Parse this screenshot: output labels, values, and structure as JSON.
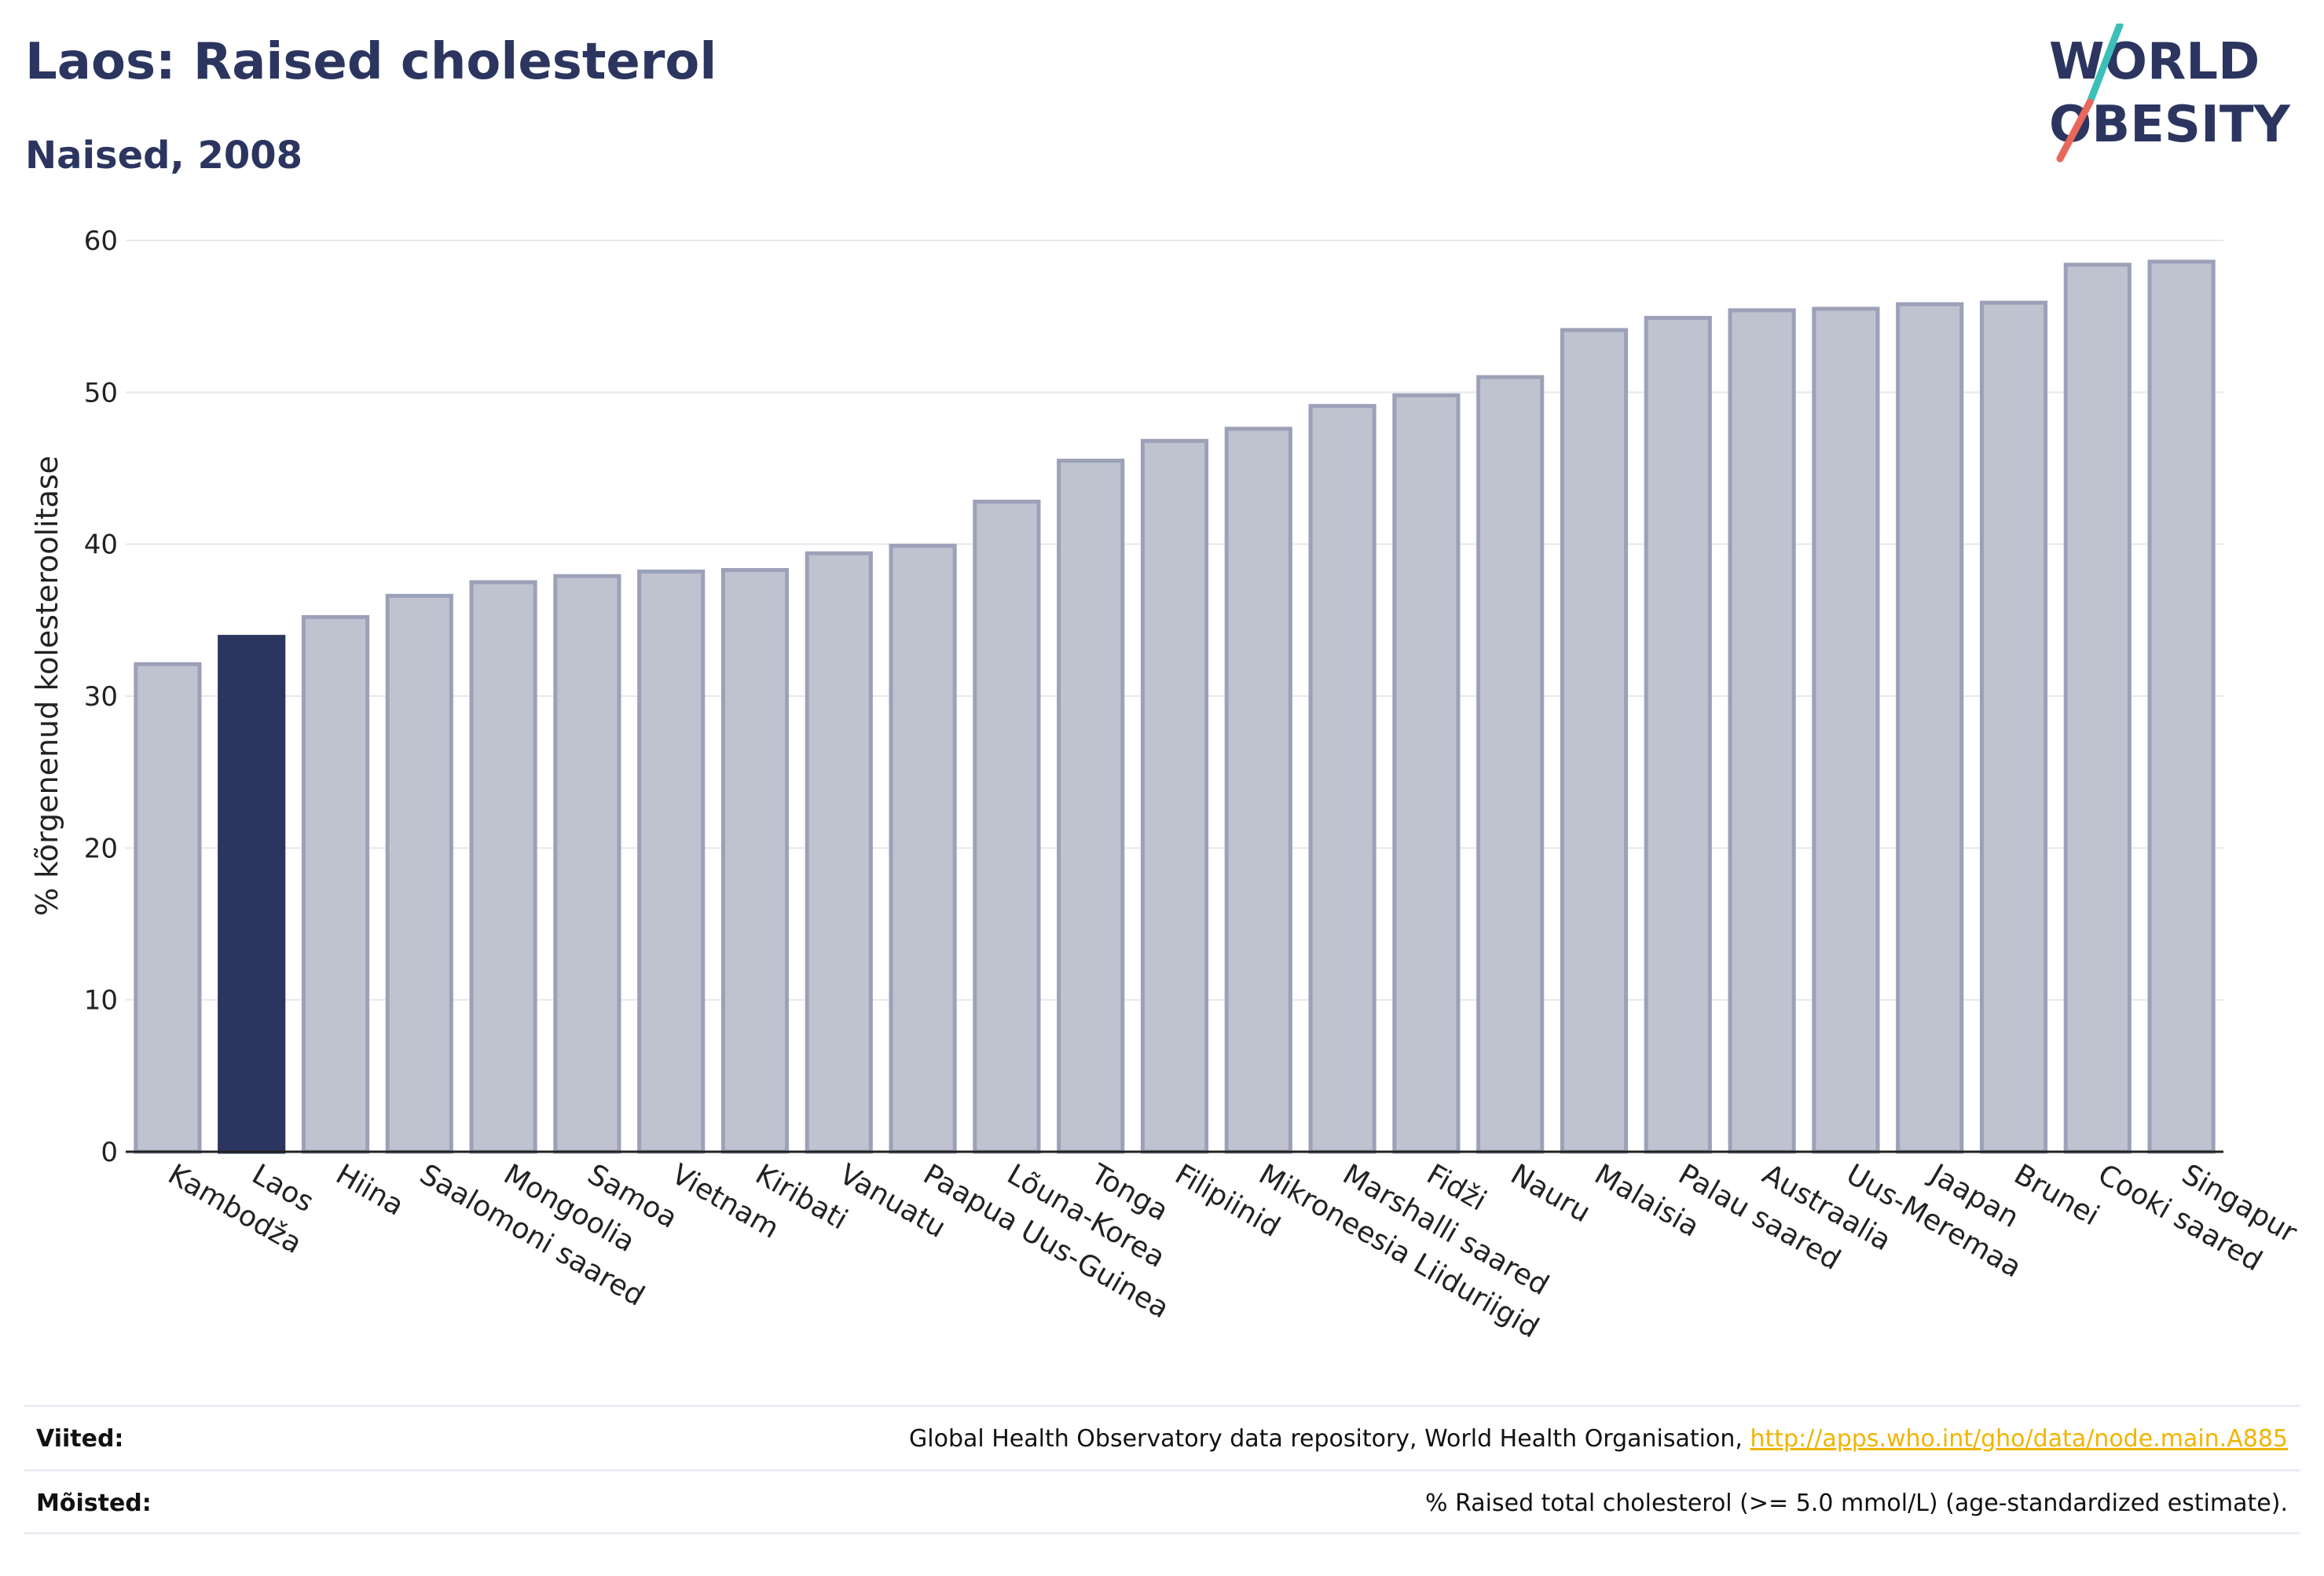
{
  "header": {
    "title": "Laos: Raised cholesterol",
    "subtitle": "Naised, 2008"
  },
  "logo": {
    "line1": "WORLD",
    "line2": "OBESITY",
    "colors": {
      "text": "#2b355f",
      "slash_top": "#3bbfb8",
      "slash_bottom": "#e8685b"
    }
  },
  "chart_data": {
    "type": "bar",
    "ylabel": "% kõrgenenud kolesteroolitase",
    "ylim": [
      0,
      60
    ],
    "yticks": [
      0,
      10,
      20,
      30,
      40,
      50,
      60
    ],
    "grid": true,
    "highlight": "Laos",
    "colors": {
      "bar": "#bfc2cf",
      "bar_border": "#9ca1b9",
      "highlight": "#2b355f"
    },
    "categories": [
      "Kambodža",
      "Laos",
      "Hiina",
      "Saalomoni saared",
      "Mongoolia",
      "Samoa",
      "Vietnam",
      "Kiribati",
      "Vanuatu",
      "Paapua Uus-Guinea",
      "Lõuna-Korea",
      "Tonga",
      "Filipiinid",
      "Mikroneesia Liiduriigid",
      "Marshalli saared",
      "Fidži",
      "Nauru",
      "Malaisia",
      "Palau saared",
      "Austraalia",
      "Uus-Meremaa",
      "Jaapan",
      "Brunei",
      "Cooki saared",
      "Singapur"
    ],
    "values": [
      32.1,
      33.9,
      35.2,
      36.6,
      37.5,
      37.9,
      38.2,
      38.3,
      39.4,
      39.9,
      42.8,
      45.5,
      46.8,
      47.6,
      49.1,
      49.8,
      51.0,
      54.1,
      54.9,
      55.4,
      55.5,
      55.8,
      55.9,
      58.4,
      58.6
    ]
  },
  "footer": {
    "references_label": "Viited:",
    "references_text": "Global Health Observatory data repository, World Health Organisation, ",
    "references_link": "http://apps.who.int/gho/data/node.main.A885",
    "definitions_label": "Mõisted:",
    "definitions_text": "% Raised total cholesterol (>= 5.0 mmol/L) (age-standardized estimate)."
  }
}
